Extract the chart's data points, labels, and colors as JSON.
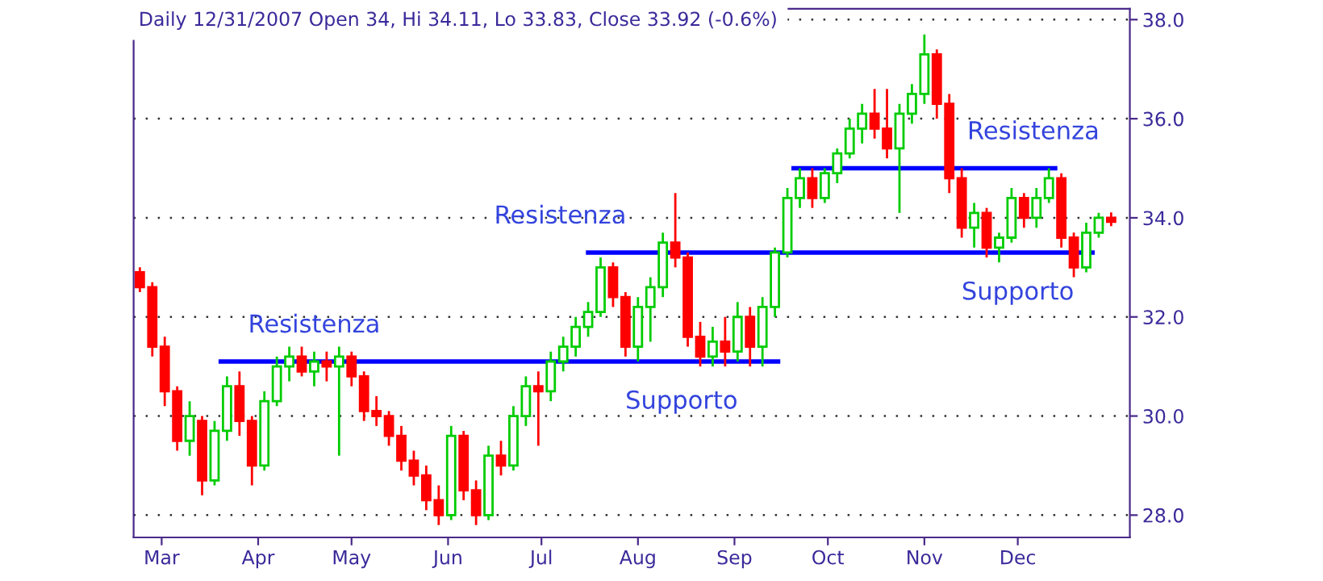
{
  "chart_data": {
    "type": "candlestick",
    "title": "Daily 12/31/2007 Open 34, Hi 34.11, Lo 33.83, Close 33.92 (-0.6%)",
    "x": [
      "2007-02-22",
      "2007-02-26",
      "2007-03-02",
      "2007-03-06",
      "2007-03-10",
      "2007-03-14",
      "2007-03-18",
      "2007-03-22",
      "2007-03-26",
      "2007-03-30",
      "2007-04-03",
      "2007-04-07",
      "2007-04-11",
      "2007-04-15",
      "2007-04-19",
      "2007-04-23",
      "2007-04-27",
      "2007-05-01",
      "2007-05-05",
      "2007-05-09",
      "2007-05-13",
      "2007-05-17",
      "2007-05-21",
      "2007-05-25",
      "2007-05-29",
      "2007-06-02",
      "2007-06-06",
      "2007-06-10",
      "2007-06-14",
      "2007-06-18",
      "2007-06-22",
      "2007-06-26",
      "2007-06-30",
      "2007-07-04",
      "2007-07-08",
      "2007-07-12",
      "2007-07-16",
      "2007-07-20",
      "2007-07-24",
      "2007-07-28",
      "2007-08-01",
      "2007-08-05",
      "2007-08-09",
      "2007-08-13",
      "2007-08-17",
      "2007-08-21",
      "2007-08-25",
      "2007-08-29",
      "2007-09-02",
      "2007-09-06",
      "2007-09-10",
      "2007-09-14",
      "2007-09-18",
      "2007-09-22",
      "2007-09-26",
      "2007-09-30",
      "2007-10-04",
      "2007-10-08",
      "2007-10-12",
      "2007-10-16",
      "2007-10-20",
      "2007-10-24",
      "2007-10-28",
      "2007-11-01",
      "2007-11-05",
      "2007-11-09",
      "2007-11-13",
      "2007-11-17",
      "2007-11-21",
      "2007-11-25",
      "2007-11-29",
      "2007-12-03",
      "2007-12-07",
      "2007-12-11",
      "2007-12-15",
      "2007-12-19",
      "2007-12-23",
      "2007-12-27",
      "2007-12-31"
    ],
    "ohlc": [
      [
        32.9,
        33.0,
        32.5,
        32.6
      ],
      [
        32.6,
        32.7,
        31.2,
        31.4
      ],
      [
        31.4,
        31.6,
        30.2,
        30.5
      ],
      [
        30.5,
        30.6,
        29.3,
        29.5
      ],
      [
        29.5,
        30.3,
        29.2,
        30.0
      ],
      [
        29.9,
        30.0,
        28.4,
        28.7
      ],
      [
        28.7,
        29.9,
        28.6,
        29.7
      ],
      [
        29.7,
        30.8,
        29.5,
        30.6
      ],
      [
        30.6,
        30.9,
        29.6,
        29.9
      ],
      [
        29.9,
        30.0,
        28.6,
        29.0
      ],
      [
        29.0,
        30.5,
        28.9,
        30.3
      ],
      [
        30.3,
        31.2,
        30.2,
        31.0
      ],
      [
        31.0,
        31.4,
        30.7,
        31.2
      ],
      [
        31.2,
        31.4,
        30.8,
        30.9
      ],
      [
        30.9,
        31.3,
        30.6,
        31.1
      ],
      [
        31.1,
        31.3,
        30.7,
        31.0
      ],
      [
        31.0,
        31.4,
        29.2,
        31.2
      ],
      [
        31.2,
        31.3,
        30.6,
        30.8
      ],
      [
        30.8,
        30.9,
        29.9,
        30.1
      ],
      [
        30.1,
        30.4,
        29.8,
        30.0
      ],
      [
        30.0,
        30.1,
        29.4,
        29.6
      ],
      [
        29.6,
        29.8,
        28.9,
        29.1
      ],
      [
        29.1,
        29.3,
        28.6,
        28.8
      ],
      [
        28.8,
        29.0,
        28.1,
        28.3
      ],
      [
        28.3,
        28.6,
        27.8,
        28.0
      ],
      [
        28.0,
        29.8,
        27.9,
        29.6
      ],
      [
        29.6,
        29.7,
        28.3,
        28.5
      ],
      [
        28.5,
        28.7,
        27.8,
        28.0
      ],
      [
        28.0,
        29.4,
        27.9,
        29.2
      ],
      [
        29.2,
        29.5,
        28.8,
        29.0
      ],
      [
        29.0,
        30.2,
        28.9,
        30.0
      ],
      [
        30.0,
        30.8,
        29.8,
        30.6
      ],
      [
        30.6,
        30.9,
        29.4,
        30.5
      ],
      [
        30.5,
        31.3,
        30.3,
        31.1
      ],
      [
        31.1,
        31.6,
        30.9,
        31.4
      ],
      [
        31.4,
        32.0,
        31.2,
        31.8
      ],
      [
        31.8,
        32.3,
        31.6,
        32.1
      ],
      [
        32.1,
        33.2,
        32.0,
        33.0
      ],
      [
        33.0,
        33.1,
        32.2,
        32.4
      ],
      [
        32.4,
        32.5,
        31.2,
        31.4
      ],
      [
        31.4,
        32.4,
        31.1,
        32.2
      ],
      [
        32.2,
        32.8,
        31.5,
        32.6
      ],
      [
        32.6,
        33.7,
        32.4,
        33.5
      ],
      [
        33.5,
        34.5,
        33.0,
        33.2
      ],
      [
        33.2,
        33.3,
        31.4,
        31.6
      ],
      [
        31.6,
        31.9,
        31.0,
        31.2
      ],
      [
        31.2,
        31.8,
        31.0,
        31.5
      ],
      [
        31.5,
        32.0,
        31.0,
        31.3
      ],
      [
        31.3,
        32.3,
        31.1,
        32.0
      ],
      [
        32.0,
        32.2,
        31.0,
        31.4
      ],
      [
        31.4,
        32.4,
        31.0,
        32.2
      ],
      [
        32.2,
        33.4,
        32.0,
        33.3
      ],
      [
        33.3,
        34.6,
        33.2,
        34.4
      ],
      [
        34.4,
        35.0,
        34.2,
        34.8
      ],
      [
        34.8,
        35.0,
        34.2,
        34.4
      ],
      [
        34.4,
        35.0,
        34.3,
        34.9
      ],
      [
        34.9,
        35.4,
        34.7,
        35.3
      ],
      [
        35.3,
        36.0,
        35.2,
        35.8
      ],
      [
        35.8,
        36.3,
        35.5,
        36.1
      ],
      [
        36.1,
        36.6,
        35.6,
        35.8
      ],
      [
        35.8,
        36.6,
        35.2,
        35.4
      ],
      [
        35.4,
        36.3,
        34.1,
        36.1
      ],
      [
        36.1,
        36.7,
        35.9,
        36.5
      ],
      [
        36.5,
        37.7,
        36.3,
        37.3
      ],
      [
        37.3,
        37.4,
        36.0,
        36.3
      ],
      [
        36.3,
        36.5,
        34.5,
        34.8
      ],
      [
        34.8,
        35.0,
        33.6,
        33.8
      ],
      [
        33.8,
        34.3,
        33.4,
        34.1
      ],
      [
        34.1,
        34.2,
        33.2,
        33.4
      ],
      [
        33.4,
        33.7,
        33.1,
        33.6
      ],
      [
        33.6,
        34.6,
        33.5,
        34.4
      ],
      [
        34.4,
        34.5,
        33.8,
        34.0
      ],
      [
        34.0,
        34.6,
        33.8,
        34.4
      ],
      [
        34.4,
        35.0,
        34.3,
        34.8
      ],
      [
        34.8,
        34.9,
        33.4,
        33.6
      ],
      [
        33.6,
        33.7,
        32.8,
        33.0
      ],
      [
        33.0,
        33.9,
        32.9,
        33.7
      ],
      [
        33.7,
        34.1,
        33.6,
        34.0
      ],
      [
        34,
        34.11,
        33.83,
        33.92
      ]
    ],
    "colors": [
      "#ff0000",
      "#ff0000",
      "#ff0000",
      "#ff0000",
      "#00cc00",
      "#ff0000",
      "#00cc00",
      "#00cc00",
      "#ff0000",
      "#ff0000",
      "#00cc00",
      "#00cc00",
      "#00cc00",
      "#ff0000",
      "#00cc00",
      "#ff0000",
      "#00cc00",
      "#ff0000",
      "#ff0000",
      "#ff0000",
      "#ff0000",
      "#ff0000",
      "#ff0000",
      "#ff0000",
      "#ff0000",
      "#00cc00",
      "#ff0000",
      "#ff0000",
      "#00cc00",
      "#ff0000",
      "#00cc00",
      "#00cc00",
      "#ff0000",
      "#00cc00",
      "#00cc00",
      "#00cc00",
      "#00cc00",
      "#00cc00",
      "#ff0000",
      "#ff0000",
      "#00cc00",
      "#00cc00",
      "#00cc00",
      "#ff0000",
      "#ff0000",
      "#ff0000",
      "#00cc00",
      "#ff0000",
      "#00cc00",
      "#ff0000",
      "#00cc00",
      "#00cc00",
      "#00cc00",
      "#00cc00",
      "#ff0000",
      "#00cc00",
      "#00cc00",
      "#00cc00",
      "#00cc00",
      "#ff0000",
      "#ff0000",
      "#00cc00",
      "#00cc00",
      "#00cc00",
      "#ff0000",
      "#ff0000",
      "#ff0000",
      "#00cc00",
      "#ff0000",
      "#00cc00",
      "#00cc00",
      "#ff0000",
      "#00cc00",
      "#00cc00",
      "#ff0000",
      "#ff0000",
      "#00cc00",
      "#00cc00",
      "#ff0000"
    ],
    "series": [
      {
        "type": "line",
        "color": "#0000ff",
        "x": [
          "2007-03-20",
          "2007-09-15"
        ],
        "values": [
          31.1,
          31.1
        ]
      },
      {
        "type": "line",
        "color": "#0000ff",
        "x": [
          "2007-07-16",
          "2007-12-25"
        ],
        "values": [
          33.3,
          33.3
        ]
      },
      {
        "type": "line",
        "color": "#0000ff",
        "x": [
          "2007-09-20",
          "2007-12-13"
        ],
        "values": [
          35.0,
          35.0
        ]
      }
    ],
    "annotations": [
      {
        "text": "Resistenza",
        "x": "2007-04-19",
        "y": 31.1
      },
      {
        "text": "Resistenza",
        "x": "2007-07-20",
        "y": 33.3
      },
      {
        "text": "Supporto",
        "x": "2007-08-15",
        "y": 31.1
      },
      {
        "text": "Resistenza",
        "x": "2007-12-06",
        "y": 35.0
      },
      {
        "text": "Supporto",
        "x": "2007-12-01",
        "y": 33.3
      }
    ],
    "xlim": [
      "2007-02-20",
      "2008-01-06"
    ],
    "xticks": [
      {
        "value": "2007-03-01",
        "label": "Mar"
      },
      {
        "value": "2007-04-01",
        "label": "Apr"
      },
      {
        "value": "2007-05-01",
        "label": "May"
      },
      {
        "value": "2007-06-01",
        "label": "Jun"
      },
      {
        "value": "2007-07-01",
        "label": "Jul"
      },
      {
        "value": "2007-08-01",
        "label": "Aug"
      },
      {
        "value": "2007-09-01",
        "label": "Sep"
      },
      {
        "value": "2007-10-01",
        "label": "Oct"
      },
      {
        "value": "2007-11-01",
        "label": "Nov"
      },
      {
        "value": "2007-12-01",
        "label": "Dec"
      }
    ],
    "ylim": [
      27.55,
      38.22
    ],
    "yticks": [
      {
        "value": 28,
        "label": "28.0"
      },
      {
        "value": 30,
        "label": "30.0"
      },
      {
        "value": 32,
        "label": "32.0"
      },
      {
        "value": 34,
        "label": "34.0"
      },
      {
        "value": 36,
        "label": "36.0"
      },
      {
        "value": 38,
        "label": "38.0"
      }
    ],
    "grid": "y"
  }
}
